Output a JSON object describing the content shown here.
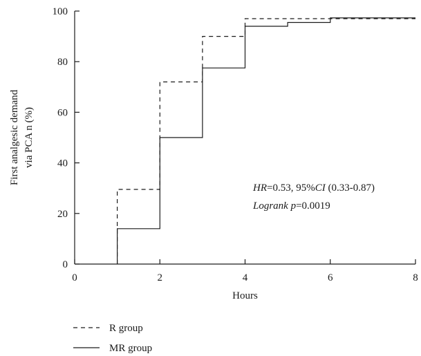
{
  "chart_data": {
    "type": "line",
    "step": true,
    "xlabel": "Hours",
    "ylabel_lines": [
      "First analgesic demand",
      "via PCA n (%)"
    ],
    "xlim": [
      0,
      8
    ],
    "ylim": [
      0,
      100
    ],
    "xticks": [
      0,
      2,
      4,
      6,
      8
    ],
    "yticks": [
      0,
      20,
      40,
      60,
      80,
      100
    ],
    "grid": false,
    "legend_position": "bottom-left",
    "series": [
      {
        "name": "R group",
        "dash": "dashed",
        "color": "#1a1a1a",
        "points": [
          [
            1,
            0
          ],
          [
            1,
            29.5
          ],
          [
            2,
            29.5
          ],
          [
            2,
            72
          ],
          [
            3,
            72
          ],
          [
            3,
            90
          ],
          [
            4,
            90
          ],
          [
            4,
            97
          ],
          [
            8,
            97
          ]
        ]
      },
      {
        "name": "MR group",
        "dash": "solid",
        "color": "#1a1a1a",
        "points": [
          [
            1,
            0
          ],
          [
            1,
            14
          ],
          [
            2,
            14
          ],
          [
            2,
            50
          ],
          [
            3,
            50
          ],
          [
            3,
            77.5
          ],
          [
            4,
            77.5
          ],
          [
            4,
            94
          ],
          [
            5,
            94
          ],
          [
            5,
            95.5
          ],
          [
            6,
            95.5
          ],
          [
            6,
            97.3
          ],
          [
            8,
            97.3
          ]
        ]
      }
    ],
    "annotations": {
      "line1": {
        "hr_label": "HR",
        "hr_value": "=0.53, 95%",
        "ci_label": "CI",
        "ci_value": " (0.33-0.87)"
      },
      "line2": {
        "test_label": "Logrank",
        "p_label": " p",
        "p_value": "=0.0019"
      }
    }
  }
}
